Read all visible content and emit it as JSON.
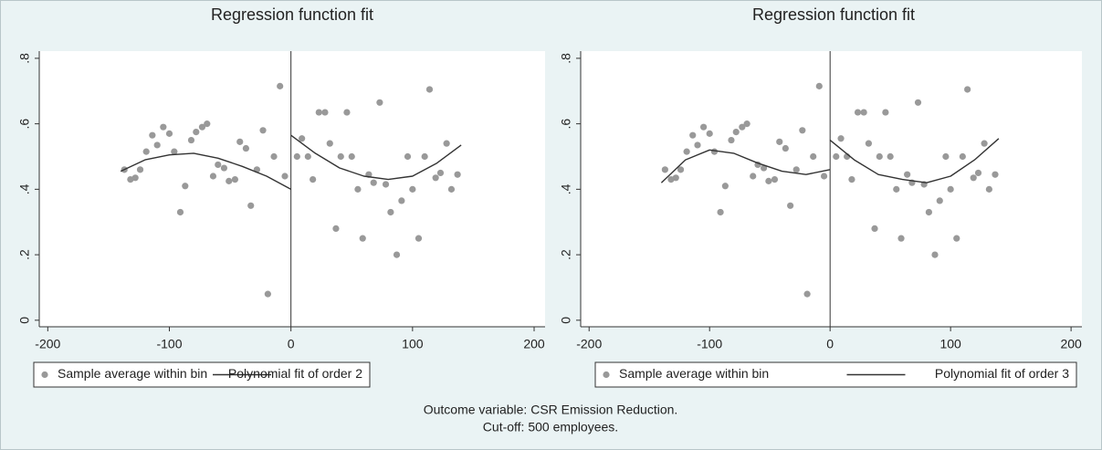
{
  "chart_data": [
    {
      "type": "scatter",
      "title": "Regression function fit",
      "xlim": [
        -207,
        209
      ],
      "ylim": [
        -0.02,
        0.822
      ],
      "xticks": [
        -200,
        -100,
        0,
        100,
        200
      ],
      "yticks": [
        0,
        {
          "value": 0.2,
          "label": ".2"
        },
        {
          "value": 0.4,
          "label": ".4"
        },
        {
          "value": 0.6,
          "label": ".6"
        },
        {
          "value": 0.8,
          "label": ".8"
        }
      ],
      "vlines": [
        0
      ],
      "series": [
        {
          "name": "Sample average within bin",
          "type": "scatter",
          "color": "#999999",
          "x": [
            -137,
            -132,
            -128,
            -124,
            -119,
            -114,
            -110,
            -105,
            -100,
            -96,
            -91,
            -87,
            -82,
            -78,
            -73,
            -69,
            -64,
            -60,
            -55,
            -51,
            -46,
            -42,
            -37,
            -33,
            -28,
            -23,
            -19,
            -14,
            -9,
            -5,
            5,
            9,
            14,
            18,
            23,
            28,
            32,
            37,
            41,
            46,
            50,
            55,
            59,
            64,
            68,
            73,
            78,
            82,
            87,
            91,
            96,
            100,
            105,
            110,
            114,
            119,
            123,
            128,
            132,
            137
          ],
          "values": [
            0.46,
            0.43,
            0.435,
            0.46,
            0.515,
            0.565,
            0.535,
            0.59,
            0.57,
            0.515,
            0.33,
            0.41,
            0.55,
            0.575,
            0.59,
            0.6,
            0.44,
            0.475,
            0.465,
            0.425,
            0.43,
            0.545,
            0.525,
            0.35,
            0.46,
            0.58,
            0.08,
            0.5,
            0.715,
            0.44,
            0.5,
            0.555,
            0.5,
            0.43,
            0.635,
            0.635,
            0.54,
            0.28,
            0.5,
            0.635,
            0.5,
            0.4,
            0.25,
            0.445,
            0.42,
            0.665,
            0.415,
            0.33,
            0.2,
            0.365,
            0.5,
            0.4,
            0.25,
            0.5,
            0.705,
            0.435,
            0.45,
            0.54,
            0.4,
            0.445
          ]
        },
        {
          "name": "Polynomial fit of order 2",
          "type": "line",
          "color": "#333333",
          "x": [
            -140,
            -120,
            -100,
            -80,
            -60,
            -40,
            -20,
            0,
            null,
            0,
            20,
            40,
            60,
            80,
            100,
            120,
            140
          ],
          "values": [
            0.455,
            0.49,
            0.505,
            0.51,
            0.495,
            0.47,
            0.44,
            0.4,
            null,
            0.565,
            0.51,
            0.465,
            0.44,
            0.43,
            0.44,
            0.48,
            0.535
          ]
        }
      ]
    },
    {
      "type": "scatter",
      "title": "Regression function fit",
      "xlim": [
        -207,
        209
      ],
      "ylim": [
        -0.02,
        0.822
      ],
      "xticks": [
        -200,
        -100,
        0,
        100,
        200
      ],
      "yticks": [
        0,
        {
          "value": 0.2,
          "label": ".2"
        },
        {
          "value": 0.4,
          "label": ".4"
        },
        {
          "value": 0.6,
          "label": ".6"
        },
        {
          "value": 0.8,
          "label": ".8"
        }
      ],
      "vlines": [
        0
      ],
      "series": [
        {
          "name": "Sample average within bin",
          "type": "scatter",
          "color": "#999999",
          "x": [
            -137,
            -132,
            -128,
            -124,
            -119,
            -114,
            -110,
            -105,
            -100,
            -96,
            -91,
            -87,
            -82,
            -78,
            -73,
            -69,
            -64,
            -60,
            -55,
            -51,
            -46,
            -42,
            -37,
            -33,
            -28,
            -23,
            -19,
            -14,
            -9,
            -5,
            5,
            9,
            14,
            18,
            23,
            28,
            32,
            37,
            41,
            46,
            50,
            55,
            59,
            64,
            68,
            73,
            78,
            82,
            87,
            91,
            96,
            100,
            105,
            110,
            114,
            119,
            123,
            128,
            132,
            137
          ],
          "values": [
            0.46,
            0.43,
            0.435,
            0.46,
            0.515,
            0.565,
            0.535,
            0.59,
            0.57,
            0.515,
            0.33,
            0.41,
            0.55,
            0.575,
            0.59,
            0.6,
            0.44,
            0.475,
            0.465,
            0.425,
            0.43,
            0.545,
            0.525,
            0.35,
            0.46,
            0.58,
            0.08,
            0.5,
            0.715,
            0.44,
            0.5,
            0.555,
            0.5,
            0.43,
            0.635,
            0.635,
            0.54,
            0.28,
            0.5,
            0.635,
            0.5,
            0.4,
            0.25,
            0.445,
            0.42,
            0.665,
            0.415,
            0.33,
            0.2,
            0.365,
            0.5,
            0.4,
            0.25,
            0.5,
            0.705,
            0.435,
            0.45,
            0.54,
            0.4,
            0.445
          ]
        },
        {
          "name": "Polynomial fit of order 3",
          "type": "line",
          "color": "#333333",
          "x": [
            -140,
            -120,
            -100,
            -80,
            -60,
            -40,
            -20,
            0,
            null,
            0,
            20,
            40,
            60,
            80,
            100,
            120,
            140
          ],
          "values": [
            0.42,
            0.49,
            0.52,
            0.51,
            0.48,
            0.455,
            0.445,
            0.46,
            null,
            0.55,
            0.49,
            0.445,
            0.43,
            0.42,
            0.44,
            0.49,
            0.555
          ]
        }
      ]
    }
  ],
  "caption": [
    "Outcome variable: CSR Emission Reduction.",
    "Cut-off: 500 employees."
  ]
}
